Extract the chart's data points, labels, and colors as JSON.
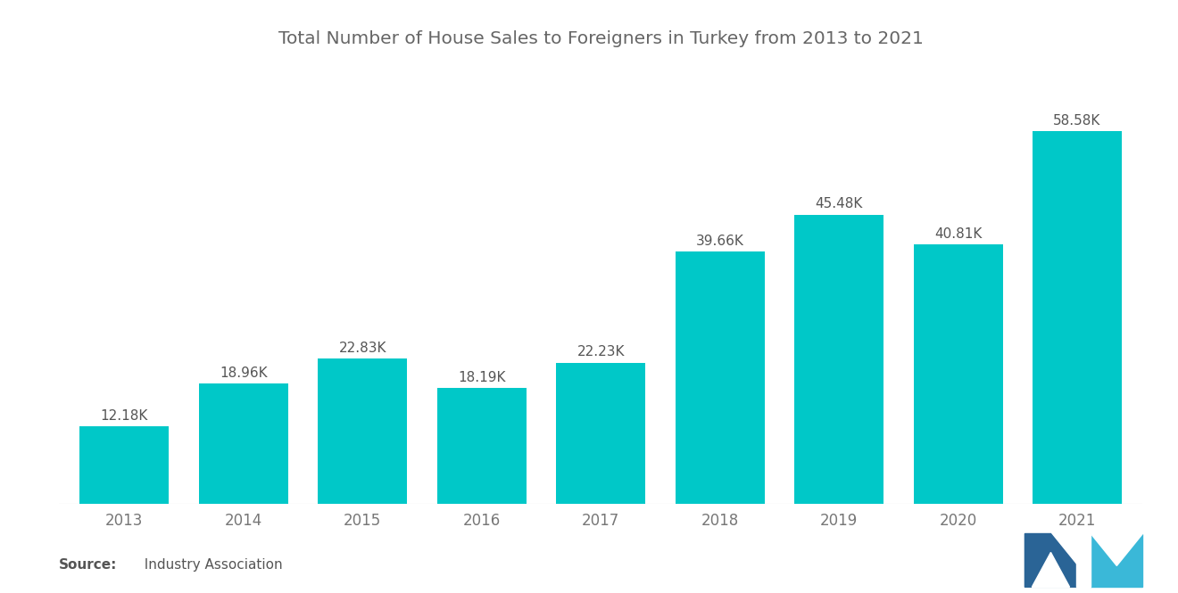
{
  "title": "Total Number of House Sales to Foreigners in Turkey from 2013 to 2021",
  "categories": [
    "2013",
    "2014",
    "2015",
    "2016",
    "2017",
    "2018",
    "2019",
    "2020",
    "2021"
  ],
  "values": [
    12180,
    18960,
    22830,
    18190,
    22230,
    39660,
    45480,
    40810,
    58580
  ],
  "labels": [
    "12.18K",
    "18.96K",
    "22.83K",
    "18.19K",
    "22.23K",
    "39.66K",
    "45.48K",
    "40.81K",
    "58.58K"
  ],
  "bar_color": "#00c8c8",
  "background_color": "#ffffff",
  "title_color": "#666666",
  "label_color": "#555555",
  "tick_color": "#777777",
  "source_bold": "Source:",
  "source_text": "  Industry Association",
  "ylim": [
    0,
    68000
  ],
  "title_fontsize": 14.5,
  "label_fontsize": 11,
  "tick_fontsize": 12,
  "source_fontsize": 11,
  "bar_width": 0.75,
  "logo_left_color": "#2a6496",
  "logo_right_color": "#3ab8d8"
}
